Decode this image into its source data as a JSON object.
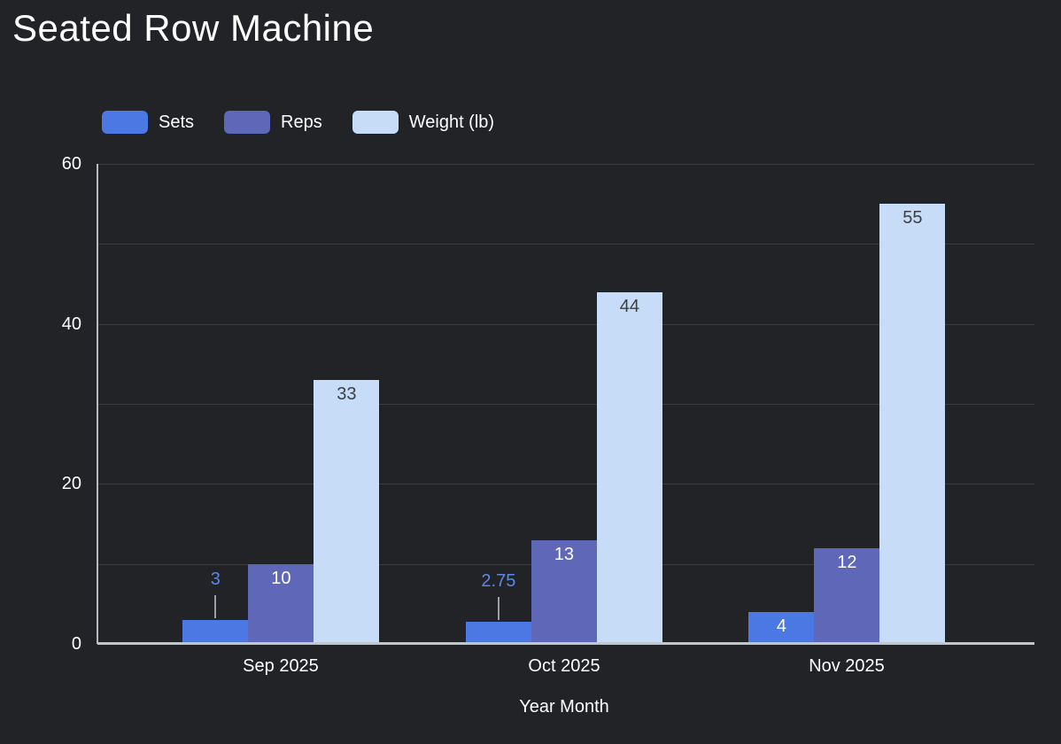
{
  "page": {
    "background": "#222327"
  },
  "chart_data": {
    "type": "bar",
    "title": "Seated Row Machine",
    "categories": [
      "Sep 2025",
      "Oct 2025",
      "Nov 2025"
    ],
    "series": [
      {
        "name": "Sets",
        "color": "#4b78e2",
        "values": [
          3,
          2.75,
          4
        ],
        "labels": [
          "3",
          "2.75",
          "4"
        ],
        "label_placements": [
          "callout",
          "callout",
          "inside"
        ],
        "inside_label_color": "#ffffff",
        "callout_label_color": "#5b87e8"
      },
      {
        "name": "Reps",
        "color": "#5f68b8",
        "values": [
          10,
          13,
          12
        ],
        "labels": [
          "10",
          "13",
          "12"
        ],
        "label_placements": [
          "inside",
          "inside",
          "inside"
        ],
        "inside_label_color": "#ffffff",
        "callout_label_color": "#7b84cf"
      },
      {
        "name": "Weight (lb)",
        "color": "#c7ddf7",
        "values": [
          33,
          44,
          55
        ],
        "labels": [
          "33",
          "44",
          "55"
        ],
        "label_placements": [
          "inside",
          "inside",
          "inside"
        ],
        "inside_label_color": "#3c4043",
        "callout_label_color": "#c7ddf7"
      }
    ],
    "xlabel": "Year Month",
    "ylabel": "",
    "ylim": [
      0,
      60
    ],
    "yticks": [
      0,
      20,
      40,
      60
    ],
    "ytick_labels_desc": [
      "60",
      "40",
      "20",
      "0"
    ],
    "grid_interval": 10,
    "grid_on": true,
    "legend_position": "top",
    "styles": {
      "gridline_color": "#3a3c40",
      "axis_line_color": "#bdc1c6",
      "callout_stem_color": "#9aa0a6",
      "text_color": "#ffffff"
    }
  }
}
